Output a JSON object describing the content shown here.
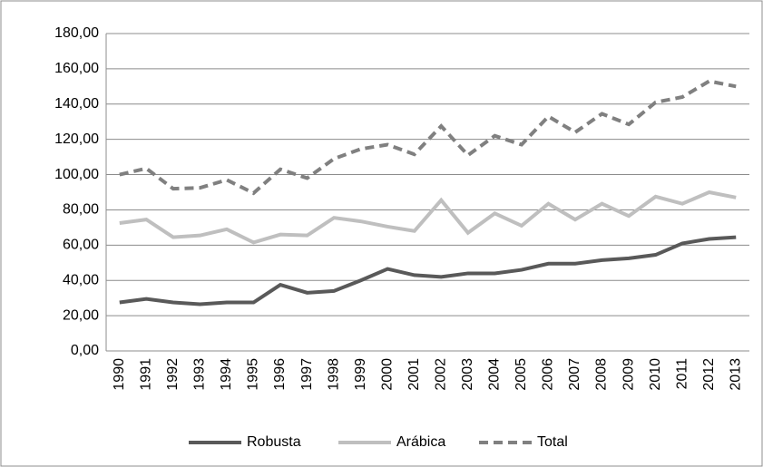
{
  "chart_data": {
    "type": "line",
    "categories": [
      "1990",
      "1991",
      "1992",
      "1993",
      "1994",
      "1995",
      "1996",
      "1997",
      "1998",
      "1999",
      "2000",
      "2001",
      "2002",
      "2003",
      "2004",
      "2005",
      "2006",
      "2007",
      "2008",
      "2009",
      "2010",
      "2011",
      "2012",
      "2013"
    ],
    "series": [
      {
        "name": "Robusta",
        "color": "#595959",
        "dashed": false,
        "values": [
          27.5,
          29.5,
          27.5,
          26.5,
          27.5,
          27.5,
          37.5,
          33,
          34,
          40,
          46.5,
          43,
          42,
          44,
          44,
          46,
          49.5,
          49.5,
          51.5,
          52.5,
          54.5,
          61,
          63.5,
          64.5
        ]
      },
      {
        "name": "Arábica",
        "color": "#bfbfbf",
        "dashed": false,
        "values": [
          72.5,
          74.5,
          64.5,
          65.5,
          69,
          61.5,
          66,
          65.5,
          75.5,
          73.5,
          70.5,
          68,
          85.5,
          67,
          78,
          71,
          83.5,
          74.5,
          83.5,
          76.5,
          87.5,
          83.5,
          90,
          87
        ]
      },
      {
        "name": "Total",
        "color": "#808080",
        "dashed": true,
        "values": [
          100,
          103.5,
          92,
          92.5,
          97,
          89.5,
          103,
          98,
          109,
          114.5,
          117,
          111.5,
          127.5,
          111,
          122,
          117,
          133,
          124,
          134.5,
          128.5,
          141,
          144,
          153,
          150
        ]
      }
    ],
    "ylim": [
      0,
      180
    ],
    "yticks": [
      {
        "value": 0,
        "label": "0,00"
      },
      {
        "value": 20,
        "label": "20,00"
      },
      {
        "value": 40,
        "label": "40,00"
      },
      {
        "value": 60,
        "label": "60,00"
      },
      {
        "value": 80,
        "label": "80,00"
      },
      {
        "value": 100,
        "label": "100,00"
      },
      {
        "value": 120,
        "label": "120,00"
      },
      {
        "value": 140,
        "label": "140,00"
      },
      {
        "value": 160,
        "label": "160,00"
      },
      {
        "value": 180,
        "label": "180,00"
      }
    ],
    "grid": true,
    "legend": "bottom"
  }
}
